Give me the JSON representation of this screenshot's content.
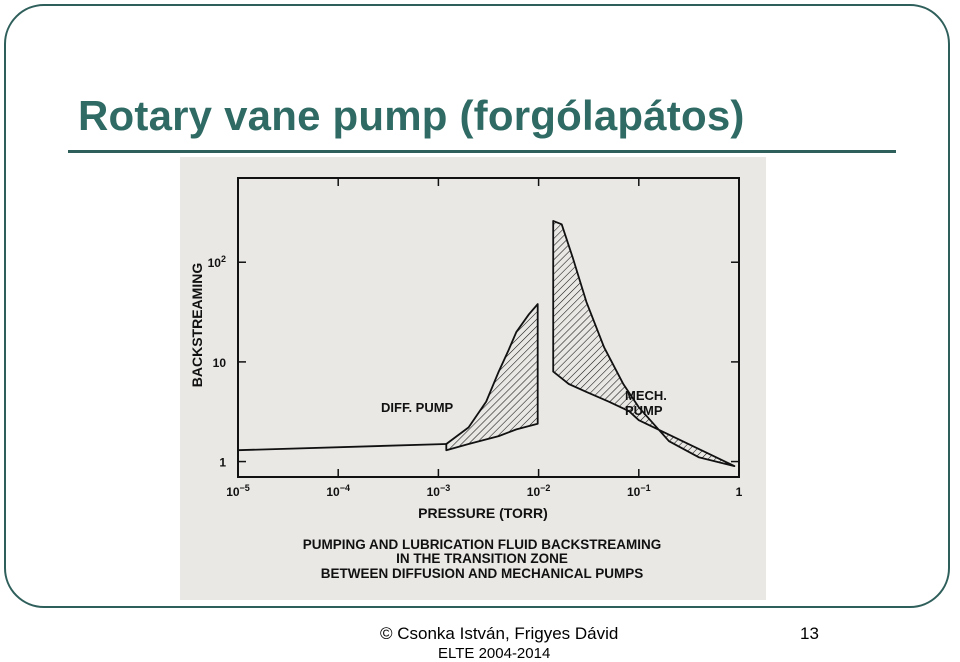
{
  "slide": {
    "title": "Rotary vane pump (forgólapátos)",
    "footer_author": "© Csonka István, Frigyes Dávid",
    "footer_years": "ELTE 2004-2014",
    "page_number": "13",
    "accent_color": "#2f6b64"
  },
  "chart_data": {
    "type": "area",
    "xlabel": "PRESSURE (TORR)",
    "ylabel": "BACKSTREAMING",
    "x_scale": "log",
    "y_scale": "log",
    "x_ticks": [
      {
        "value": 1e-05,
        "base": "10",
        "exp": "−5"
      },
      {
        "value": 0.0001,
        "base": "10",
        "exp": "−4"
      },
      {
        "value": 0.001,
        "base": "10",
        "exp": "−3"
      },
      {
        "value": 0.01,
        "base": "10",
        "exp": "−2"
      },
      {
        "value": 0.1,
        "base": "10",
        "exp": "−1"
      },
      {
        "value": 1,
        "base": "1",
        "exp": ""
      }
    ],
    "y_ticks": [
      {
        "value": 1,
        "base": "1",
        "exp": ""
      },
      {
        "value": 10,
        "base": "10",
        "exp": ""
      },
      {
        "value": 100,
        "base": "10",
        "exp": "2"
      }
    ],
    "xlim": [
      1e-05,
      1
    ],
    "ylim": [
      0.7,
      700
    ],
    "series": [
      {
        "name": "DIFF. PUMP",
        "upper": [
          [
            0.0012,
            1.5
          ],
          [
            0.002,
            2.2
          ],
          [
            0.003,
            4
          ],
          [
            0.004,
            8
          ],
          [
            0.005,
            13
          ],
          [
            0.006,
            20
          ],
          [
            0.008,
            30
          ],
          [
            0.0098,
            38
          ]
        ],
        "lower": [
          [
            0.0012,
            1.3
          ],
          [
            0.002,
            1.5
          ],
          [
            0.004,
            1.8
          ],
          [
            0.006,
            2.1
          ],
          [
            0.0098,
            2.4
          ]
        ]
      },
      {
        "name": "MECH. PUMP",
        "upper": [
          [
            0.014,
            260
          ],
          [
            0.017,
            240
          ],
          [
            0.022,
            110
          ],
          [
            0.03,
            40
          ],
          [
            0.045,
            14
          ],
          [
            0.07,
            6
          ],
          [
            0.1,
            3.5
          ],
          [
            0.2,
            1.6
          ],
          [
            0.4,
            1.1
          ],
          [
            0.9,
            0.9
          ]
        ],
        "lower": [
          [
            0.014,
            8
          ],
          [
            0.02,
            6
          ],
          [
            0.03,
            5
          ],
          [
            0.05,
            4
          ],
          [
            0.08,
            3.2
          ],
          [
            0.1,
            2.6
          ]
        ]
      }
    ],
    "caption": [
      "PUMPING AND LUBRICATION FLUID BACKSTREAMING",
      "IN THE TRANSITION ZONE",
      "BETWEEN DIFFUSION AND MECHANICAL PUMPS"
    ]
  }
}
